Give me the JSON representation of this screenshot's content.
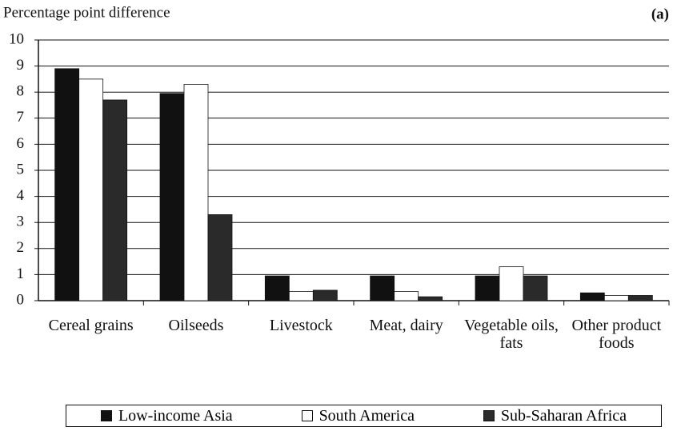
{
  "chart_data": {
    "type": "bar",
    "title": "Percentage point difference",
    "panel_label": "(a)",
    "categories": [
      "Cereal grains",
      "Oilseeds",
      "Livestock",
      "Meat, dairy",
      "Vegetable oils, fats",
      "Other product foods"
    ],
    "series": [
      {
        "name": "Low-income Asia",
        "color": "#111111",
        "values": [
          8.9,
          7.95,
          0.95,
          0.95,
          0.95,
          0.3
        ]
      },
      {
        "name": "South America",
        "color": "#ffffff",
        "values": [
          8.5,
          8.3,
          0.35,
          0.35,
          1.3,
          0.2
        ]
      },
      {
        "name": "Sub-Saharan Africa",
        "color": "#2a2a2a",
        "values": [
          7.7,
          3.3,
          0.4,
          0.15,
          0.95,
          0.2
        ]
      }
    ],
    "ylim": [
      0,
      10
    ],
    "yticks": [
      0,
      1,
      2,
      3,
      4,
      5,
      6,
      7,
      8,
      9,
      10
    ],
    "grid": true
  }
}
